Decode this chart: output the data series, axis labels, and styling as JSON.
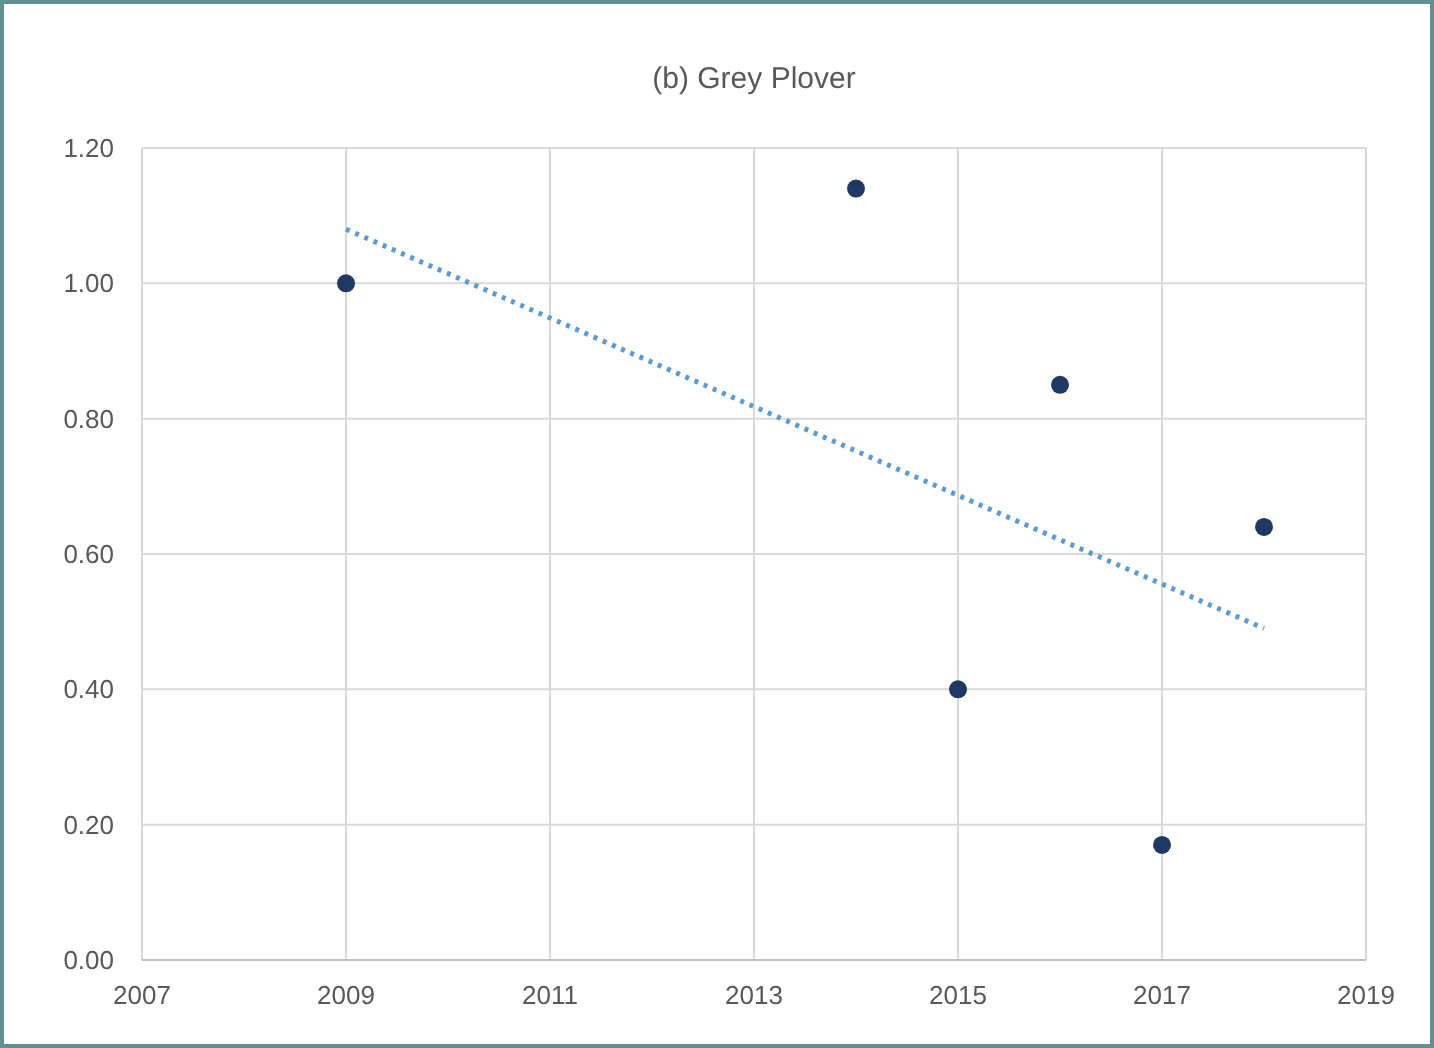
{
  "chart_data": {
    "type": "scatter",
    "title": "(b) Grey Plover",
    "x": [
      2009,
      2014,
      2015,
      2016,
      2017,
      2018
    ],
    "series": [
      {
        "color": "#1f3864",
        "marker": "circle",
        "values": [
          1.0,
          1.14,
          0.4,
          0.85,
          0.17,
          0.64
        ]
      },
      {
        "type": "line",
        "color": "#5b9bd5",
        "line_style": "dotted",
        "x": [
          2009,
          2018
        ],
        "values": [
          1.08,
          0.49
        ]
      }
    ],
    "xlim": [
      2007,
      2019
    ],
    "xticks": [
      2007,
      2009,
      2011,
      2013,
      2015,
      2017,
      2019
    ],
    "ylim": [
      0,
      1.2
    ],
    "yticks": [
      {
        "value": 0,
        "label": "0.00"
      },
      {
        "value": 0.2,
        "label": "0.20"
      },
      {
        "value": 0.4,
        "label": "0.40"
      },
      {
        "value": 0.6,
        "label": "0.60"
      },
      {
        "value": 0.8,
        "label": "0.80"
      },
      {
        "value": 1,
        "label": "1.00"
      },
      {
        "value": 1.2,
        "label": "1.20"
      }
    ],
    "grid": true
  }
}
